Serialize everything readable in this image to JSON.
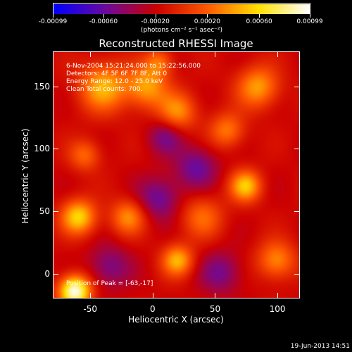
{
  "chart_data": {
    "type": "heatmap",
    "title": "Reconstructed RHESSI Image",
    "xlabel": "Heliocentric X (arcsec)",
    "ylabel": "Heliocentric Y (arcsec)",
    "xlim": [
      -80,
      118
    ],
    "ylim": [
      -20,
      178
    ],
    "xticks": [
      "-50",
      "0",
      "50",
      "100"
    ],
    "yticks": [
      "0",
      "50",
      "100",
      "150"
    ],
    "colorbar": {
      "range": [
        -0.00099,
        0.00099
      ],
      "tick_labels": [
        "-0.00099",
        "-0.00060",
        "-0.00020",
        "0.00020",
        "0.00060",
        "0.00099"
      ],
      "units": "(photons cm⁻² s⁻¹ asec⁻²)",
      "colors": [
        "#0000ff",
        "#6a0aa0",
        "#cc0000",
        "#ff5a00",
        "#ffe000",
        "#ffffff"
      ]
    },
    "annotations": [
      "6-Nov-2004 15:21:24.000 to 15:22:56.000",
      "Detectors: 4F 5F 6F 7F 8F, Att 0",
      "Energy Range: 12.0 - 25.0 keV",
      "Clean    Total counts: 700."
    ],
    "peak_label": "Position of Peak = [-63,-17]",
    "peak_position": [
      -63,
      -17
    ],
    "blobs": [
      {
        "x": -63,
        "y": -15,
        "amp": 1.0,
        "s": 9
      },
      {
        "x": -60,
        "y": 45,
        "amp": 0.65,
        "s": 10
      },
      {
        "x": -40,
        "y": 150,
        "amp": 0.55,
        "s": 14
      },
      {
        "x": -5,
        "y": 150,
        "amp": 0.5,
        "s": 12
      },
      {
        "x": 20,
        "y": 130,
        "amp": 0.45,
        "s": 11
      },
      {
        "x": 75,
        "y": 70,
        "amp": 0.6,
        "s": 9
      },
      {
        "x": 85,
        "y": 150,
        "amp": 0.5,
        "s": 12
      },
      {
        "x": 60,
        "y": 115,
        "amp": 0.4,
        "s": 10
      },
      {
        "x": 20,
        "y": 10,
        "amp": 0.55,
        "s": 9
      },
      {
        "x": 100,
        "y": 10,
        "amp": 0.45,
        "s": 11
      },
      {
        "x": -20,
        "y": 45,
        "amp": 0.45,
        "s": 10
      },
      {
        "x": 40,
        "y": 45,
        "amp": 0.35,
        "s": 12
      },
      {
        "x": -55,
        "y": 95,
        "amp": 0.35,
        "s": 9
      },
      {
        "x": 5,
        "y": 170,
        "amp": 0.35,
        "s": 8
      },
      {
        "x": 5,
        "y": 60,
        "amp": -0.35,
        "s": 12
      },
      {
        "x": 35,
        "y": 85,
        "amp": -0.35,
        "s": 12
      },
      {
        "x": 10,
        "y": 110,
        "amp": -0.3,
        "s": 10
      },
      {
        "x": 55,
        "y": 0,
        "amp": -0.3,
        "s": 12
      },
      {
        "x": -35,
        "y": 5,
        "amp": -0.3,
        "s": 12
      }
    ]
  },
  "timestamp": "19-Jun-2013 14:51"
}
